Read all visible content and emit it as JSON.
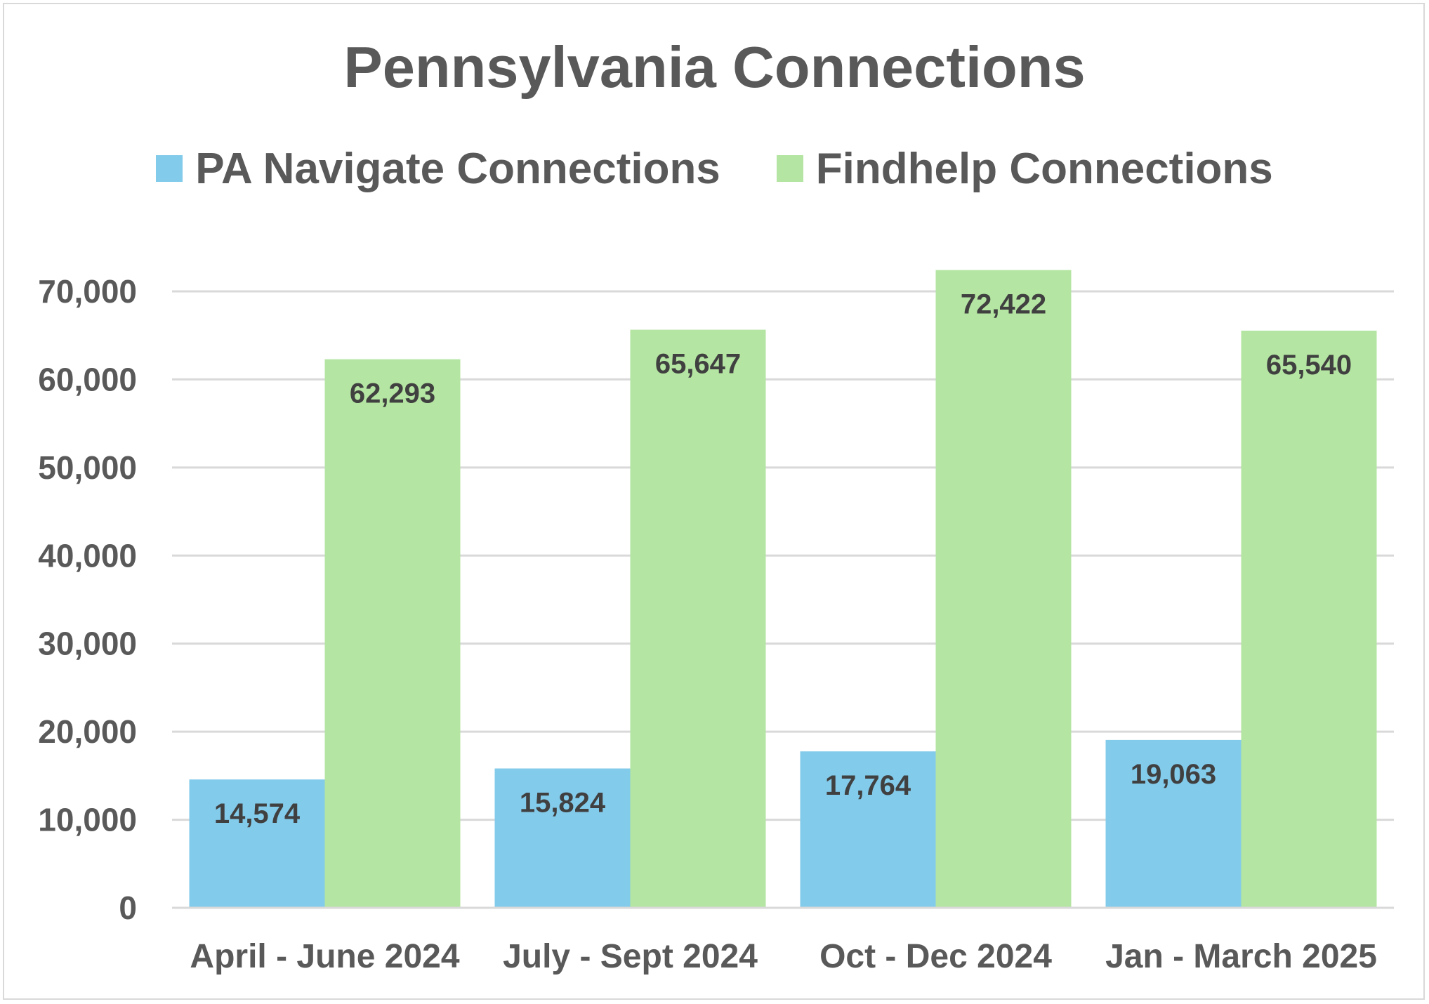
{
  "chart_data": {
    "type": "bar",
    "title": "Pennsylvania Connections",
    "categories": [
      "April - June 2024",
      "July - Sept 2024",
      "Oct - Dec 2024",
      "Jan - March 2025"
    ],
    "series": [
      {
        "name": "PA Navigate Connections",
        "color": "#83cbeb",
        "values": [
          14574,
          15824,
          17764,
          19063
        ],
        "labels": [
          "14,574",
          "15,824",
          "17,764",
          "19,063"
        ]
      },
      {
        "name": "Findhelp Connections",
        "color": "#b4e5a2",
        "values": [
          62293,
          65647,
          72422,
          65540
        ],
        "labels": [
          "62,293",
          "65,647",
          "72,422",
          "65,540"
        ]
      }
    ],
    "ylim": [
      0,
      70000
    ],
    "yticks": [
      0,
      10000,
      20000,
      30000,
      40000,
      50000,
      60000,
      70000
    ],
    "ytick_labels": [
      "0",
      "10,000",
      "20,000",
      "30,000",
      "40,000",
      "50,000",
      "60,000",
      "70,000"
    ],
    "xlabel": "",
    "ylabel": "",
    "grid": true,
    "legend": "top",
    "colors": {
      "text": "#595959",
      "data_label": "#404040",
      "grid": "#d9d9d9"
    }
  }
}
